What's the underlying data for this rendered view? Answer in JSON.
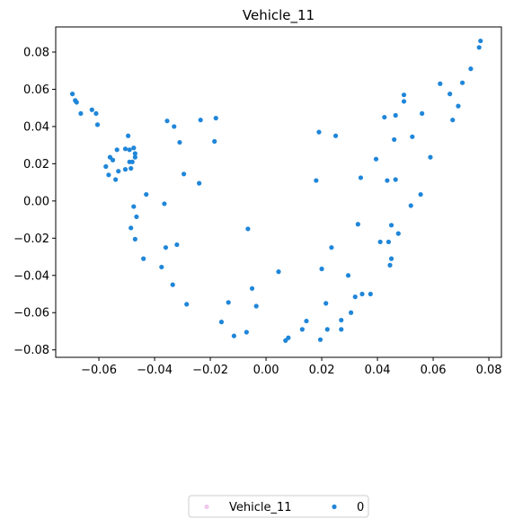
{
  "chart_data": {
    "type": "scatter",
    "title": "Vehicle_11",
    "xlabel": "",
    "ylabel": "",
    "xlim": [
      -0.0755,
      0.0845
    ],
    "ylim": [
      -0.084,
      0.0935
    ],
    "xticks": [
      -0.06,
      -0.04,
      -0.02,
      0.0,
      0.02,
      0.04,
      0.06,
      0.08
    ],
    "xtick_labels": [
      "−0.06",
      "−0.04",
      "−0.02",
      "0.00",
      "0.02",
      "0.04",
      "0.06",
      "0.08"
    ],
    "yticks": [
      -0.08,
      -0.06,
      -0.04,
      -0.02,
      0.0,
      0.02,
      0.04,
      0.06,
      0.08
    ],
    "ytick_labels": [
      "−0.08",
      "−0.06",
      "−0.04",
      "−0.02",
      "0.00",
      "0.02",
      "0.04",
      "0.06",
      "0.08"
    ],
    "grid": false,
    "legend_position": "bottom-center",
    "series": [
      {
        "name": "Vehicle_11",
        "color": "#f0c8f0",
        "points": []
      },
      {
        "name": "0",
        "color": "#1f86d9",
        "points": [
          [
            -0.0695,
            0.0575
          ],
          [
            -0.068,
            0.053
          ],
          [
            -0.0685,
            0.054
          ],
          [
            -0.0665,
            0.047
          ],
          [
            -0.0625,
            0.049
          ],
          [
            -0.061,
            0.047
          ],
          [
            -0.0605,
            0.041
          ],
          [
            -0.0575,
            0.0185
          ],
          [
            -0.0565,
            0.014
          ],
          [
            -0.056,
            0.0235
          ],
          [
            -0.055,
            0.022
          ],
          [
            -0.054,
            0.0115
          ],
          [
            -0.0535,
            0.0275
          ],
          [
            -0.053,
            0.016
          ],
          [
            -0.0505,
            0.017
          ],
          [
            -0.0505,
            0.028
          ],
          [
            -0.049,
            0.021
          ],
          [
            -0.0495,
            0.035
          ],
          [
            -0.049,
            0.0275
          ],
          [
            -0.0485,
            0.0175
          ],
          [
            -0.048,
            0.021
          ],
          [
            -0.0475,
            0.0285
          ],
          [
            -0.047,
            0.0235
          ],
          [
            -0.047,
            0.0255
          ],
          [
            -0.0475,
            -0.003
          ],
          [
            -0.0465,
            -0.0085
          ],
          [
            -0.0485,
            -0.0145
          ],
          [
            -0.047,
            -0.0205
          ],
          [
            -0.043,
            0.0035
          ],
          [
            -0.044,
            -0.031
          ],
          [
            -0.0375,
            -0.0355
          ],
          [
            -0.0365,
            -0.0015
          ],
          [
            -0.036,
            -0.025
          ],
          [
            -0.0355,
            0.043
          ],
          [
            -0.0335,
            -0.045
          ],
          [
            -0.033,
            0.04
          ],
          [
            -0.032,
            -0.0235
          ],
          [
            -0.031,
            0.0315
          ],
          [
            -0.0295,
            0.0145
          ],
          [
            -0.0285,
            -0.0555
          ],
          [
            -0.024,
            0.0095
          ],
          [
            -0.0235,
            0.0435
          ],
          [
            -0.018,
            0.0445
          ],
          [
            -0.0185,
            0.032
          ],
          [
            -0.016,
            -0.065
          ],
          [
            -0.0135,
            -0.0545
          ],
          [
            -0.0115,
            -0.0725
          ],
          [
            -0.007,
            -0.0705
          ],
          [
            -0.0065,
            -0.015
          ],
          [
            -0.005,
            -0.047
          ],
          [
            -0.0035,
            -0.0565
          ],
          [
            0.0045,
            -0.038
          ],
          [
            0.007,
            -0.075
          ],
          [
            0.008,
            -0.0735
          ],
          [
            0.013,
            -0.069
          ],
          [
            0.0145,
            -0.0645
          ],
          [
            0.018,
            0.011
          ],
          [
            0.019,
            0.037
          ],
          [
            0.0195,
            -0.0745
          ],
          [
            0.02,
            -0.0365
          ],
          [
            0.0215,
            -0.055
          ],
          [
            0.022,
            -0.069
          ],
          [
            0.0235,
            -0.025
          ],
          [
            0.025,
            0.035
          ],
          [
            0.027,
            -0.064
          ],
          [
            0.027,
            -0.069
          ],
          [
            0.0295,
            -0.04
          ],
          [
            0.0305,
            -0.06
          ],
          [
            0.032,
            -0.0515
          ],
          [
            0.033,
            -0.0125
          ],
          [
            0.034,
            0.0125
          ],
          [
            0.0345,
            -0.05
          ],
          [
            0.0375,
            -0.05
          ],
          [
            0.0395,
            0.0225
          ],
          [
            0.041,
            -0.022
          ],
          [
            0.0425,
            0.045
          ],
          [
            0.0435,
            0.011
          ],
          [
            0.044,
            -0.022
          ],
          [
            0.0445,
            -0.0345
          ],
          [
            0.045,
            -0.031
          ],
          [
            0.045,
            -0.013
          ],
          [
            0.046,
            0.033
          ],
          [
            0.0465,
            0.0115
          ],
          [
            0.0465,
            0.046
          ],
          [
            0.0475,
            -0.0175
          ],
          [
            0.0495,
            0.057
          ],
          [
            0.0495,
            0.0535
          ],
          [
            0.052,
            -0.0025
          ],
          [
            0.0525,
            0.0345
          ],
          [
            0.0555,
            0.0035
          ],
          [
            0.056,
            0.047
          ],
          [
            0.059,
            0.0235
          ],
          [
            0.0625,
            0.063
          ],
          [
            0.066,
            0.0575
          ],
          [
            0.067,
            0.0435
          ],
          [
            0.069,
            0.051
          ],
          [
            0.0705,
            0.0635
          ],
          [
            0.0735,
            0.071
          ],
          [
            0.0765,
            0.0825
          ],
          [
            0.077,
            0.086
          ]
        ]
      }
    ]
  }
}
